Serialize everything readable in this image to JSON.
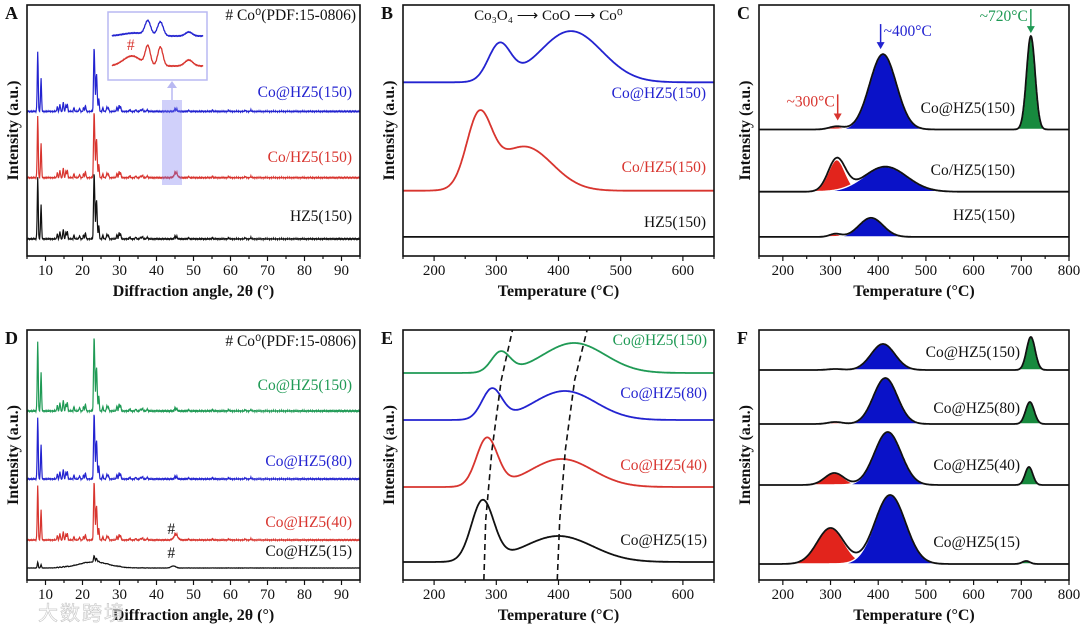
{
  "figure": {
    "watermark": "大数跨境"
  },
  "colors": {
    "blue": "#2323d0",
    "red": "#d8352f",
    "green": "#1f9a55",
    "black": "#111111",
    "fill_blue": "#0a12c8",
    "fill_red": "#e2241c",
    "fill_green": "#178a3e",
    "inset": "#b9b9f2"
  },
  "chart_data": [
    {
      "panel": "A",
      "type": "line",
      "title": "",
      "xlabel": "Diffraction angle, 2θ (°)",
      "ylabel": "Intensity (a.u.)",
      "xlim": [
        5,
        95
      ],
      "ylim": [
        0,
        250
      ],
      "xticks": [
        10,
        20,
        30,
        40,
        50,
        60,
        70,
        80,
        90
      ],
      "legend_note": "# Co⁰(PDF:15-0806)",
      "reference_peaks": [
        [
          7.9,
          1
        ],
        [
          8.8,
          0.55
        ],
        [
          13.2,
          0.08
        ],
        [
          13.9,
          0.12
        ],
        [
          14.8,
          0.16
        ],
        [
          15.5,
          0.1
        ],
        [
          15.9,
          0.12
        ],
        [
          17.7,
          0.06
        ],
        [
          19.2,
          0.05
        ],
        [
          20.3,
          0.06
        ],
        [
          20.8,
          0.1
        ],
        [
          23.1,
          0.9
        ],
        [
          23.3,
          0.45
        ],
        [
          23.7,
          0.45
        ],
        [
          23.9,
          0.38
        ],
        [
          24.4,
          0.22
        ],
        [
          25.5,
          0.06
        ],
        [
          26.6,
          0.08
        ],
        [
          27.0,
          0.06
        ],
        [
          29.3,
          0.07
        ],
        [
          29.9,
          0.1
        ],
        [
          30.3,
          0.08
        ],
        [
          32.8,
          0.03
        ],
        [
          34.4,
          0.03
        ],
        [
          35.7,
          0.03
        ],
        [
          36.2,
          0.04
        ],
        [
          37.5,
          0.03
        ],
        [
          45.0,
          0.05
        ],
        [
          45.5,
          0.04
        ],
        [
          48.7,
          0.02
        ],
        [
          55.1,
          0.02
        ],
        [
          59.5,
          0.02
        ],
        [
          64.0,
          0.02
        ],
        [
          65.5,
          0.02
        ]
      ],
      "series": [
        {
          "name": "Co@HZ5(150)",
          "color": "blue",
          "baseline": 144,
          "scale": 60,
          "humps": []
        },
        {
          "name": "Co/HZ5(150)",
          "color": "red",
          "baseline": 78,
          "scale": 62,
          "humps": [
            [
              45.2,
              3,
              0.5
            ]
          ]
        },
        {
          "name": "HZ5(150)",
          "color": "black",
          "baseline": 17,
          "scale": 62,
          "humps": []
        }
      ],
      "inset": {
        "xlim": [
          38,
          54
        ],
        "ylim": [
          0,
          68
        ],
        "mark": "#",
        "series": [
          {
            "name": "Co@HZ5(150)",
            "color": "blue",
            "baseline": 44,
            "peaks": [
              [
                42,
                3,
                2
              ],
              [
                44.3,
                14,
                0.5
              ],
              [
                46.5,
                14,
                0.5
              ],
              [
                51.5,
                4,
                0.6
              ]
            ]
          },
          {
            "name": "Co/HZ5(150)",
            "color": "red",
            "baseline": 14,
            "peaks": [
              [
                41.5,
                10,
                1.5
              ],
              [
                44.3,
                19,
                0.45
              ],
              [
                46.5,
                19,
                0.45
              ],
              [
                51.5,
                6,
                0.7
              ]
            ]
          }
        ]
      }
    },
    {
      "panel": "B",
      "type": "line",
      "xlabel": "Temperature (°C)",
      "ylabel": "Intensity (a.u.)",
      "xlim": [
        150,
        650
      ],
      "ylim": [
        0,
        250
      ],
      "xticks": [
        200,
        300,
        400,
        500,
        600
      ],
      "annotation": "Co₃O₄ ⟶ CoO ⟶ Co⁰",
      "series": [
        {
          "name": "Co@HZ5(150)",
          "color": "blue",
          "baseline": 173,
          "components": [
            [
              305,
              36,
              18
            ],
            [
              420,
              51,
              50
            ]
          ]
        },
        {
          "name": "Co/HZ5(150)",
          "color": "red",
          "baseline": 65,
          "components": [
            [
              272,
              68,
              20
            ],
            [
              345,
              44,
              45
            ]
          ]
        },
        {
          "name": "HZ5(150)",
          "color": "black",
          "baseline": 19,
          "components": []
        }
      ]
    },
    {
      "panel": "C",
      "type": "area",
      "xlabel": "Temperature (°C)",
      "ylabel": "Intensity (a.u.)",
      "xlim": [
        150,
        800
      ],
      "ylim": [
        0,
        250
      ],
      "xticks": [
        200,
        300,
        400,
        500,
        600,
        700,
        800
      ],
      "arrows": [
        {
          "text": "~300°C",
          "color": "red",
          "x": 315,
          "from": 161,
          "to": 135,
          "side": "left"
        },
        {
          "text": "~400°C",
          "color": "blue",
          "x": 405,
          "from": 231,
          "to": 206,
          "side": "right"
        },
        {
          "text": "~720°C",
          "color": "green",
          "x": 720,
          "from": 246,
          "to": 222,
          "side": "left"
        }
      ],
      "series": [
        {
          "name": "Co@HZ5(150)",
          "baseline": 126,
          "components": [
            [
              312,
              3,
              15,
              "fill_red"
            ],
            [
              410,
              75,
              28,
              "fill_blue"
            ],
            [
              720,
              93,
              9,
              "fill_green"
            ]
          ]
        },
        {
          "name": "Co/HZ5(150)",
          "baseline": 64,
          "components": [
            [
              313,
              32,
              18,
              "fill_red"
            ],
            [
              415,
              25,
              45,
              "fill_blue"
            ]
          ]
        },
        {
          "name": "HZ5(150)",
          "baseline": 19,
          "components": [
            [
              310,
              3,
              12,
              "fill_red"
            ],
            [
              385,
              19,
              25,
              "fill_blue"
            ]
          ]
        }
      ]
    },
    {
      "panel": "D",
      "type": "line",
      "xlabel": "Diffraction angle, 2θ (°)",
      "ylabel": "Intensity (a.u.)",
      "xlim": [
        5,
        95
      ],
      "ylim": [
        0,
        250
      ],
      "xticks": [
        10,
        20,
        30,
        40,
        50,
        60,
        70,
        80,
        90
      ],
      "legend_note": "# Co⁰(PDF:15-0806)",
      "mark": "#",
      "series": [
        {
          "name": "Co@HZ5(150)",
          "color": "green",
          "baseline": 169,
          "scale": 70,
          "humps": []
        },
        {
          "name": "Co@HZ5(80)",
          "color": "blue",
          "baseline": 101,
          "scale": 62,
          "humps": []
        },
        {
          "name": "Co@HZ5(40)",
          "color": "red",
          "baseline": 40,
          "scale": 55,
          "humps": [
            [
              45.2,
              4,
              0.6
            ]
          ]
        },
        {
          "name": "Co@HZ5(15)",
          "color": "black",
          "baseline": 12,
          "scale": 6,
          "humps": [
            [
              23,
              6,
              4
            ],
            [
              44.5,
              2,
              0.6
            ]
          ]
        }
      ]
    },
    {
      "panel": "E",
      "type": "line",
      "xlabel": "Temperature (°C)",
      "ylabel": "Intensity (a.u.)",
      "xlim": [
        150,
        650
      ],
      "ylim": [
        0,
        250
      ],
      "xticks": [
        200,
        300,
        400,
        500,
        600
      ],
      "guides": [
        [
          [
            280,
            0
          ],
          [
            283,
            60
          ],
          [
            293,
            130
          ],
          [
            308,
            200
          ],
          [
            326,
            250
          ]
        ],
        [
          [
            398,
            0
          ],
          [
            402,
            60
          ],
          [
            411,
            130
          ],
          [
            426,
            200
          ],
          [
            446,
            250
          ]
        ]
      ],
      "series": [
        {
          "name": "Co@HZ5(150)",
          "color": "green",
          "baseline": 207,
          "components": [
            [
              307,
              20,
              15
            ],
            [
              425,
              30,
              50
            ]
          ]
        },
        {
          "name": "Co@HZ5(80)",
          "color": "blue",
          "baseline": 160,
          "components": [
            [
              293,
              30,
              16
            ],
            [
              410,
              29,
              50
            ]
          ]
        },
        {
          "name": "Co@HZ5(40)",
          "color": "red",
          "baseline": 93,
          "components": [
            [
              285,
              48,
              17
            ],
            [
              405,
              28,
              50
            ]
          ]
        },
        {
          "name": "Co@HZ5(15)",
          "color": "black",
          "baseline": 18,
          "components": [
            [
              278,
              60,
              18
            ],
            [
              400,
              26,
              55
            ]
          ]
        }
      ]
    },
    {
      "panel": "F",
      "type": "area",
      "xlabel": "Temperature (°C)",
      "ylabel": "Intensity (a.u.)",
      "xlim": [
        150,
        800
      ],
      "ylim": [
        0,
        250
      ],
      "xticks": [
        200,
        300,
        400,
        500,
        600,
        700,
        800
      ],
      "series": [
        {
          "name": "Co@HZ5(150)",
          "baseline": 210,
          "components": [
            [
              310,
              1,
              15,
              "fill_red"
            ],
            [
              410,
              26,
              25,
              "fill_blue"
            ],
            [
              720,
              33,
              9,
              "fill_green"
            ]
          ]
        },
        {
          "name": "Co@HZ5(80)",
          "baseline": 156,
          "components": [
            [
              310,
              2,
              15,
              "fill_red"
            ],
            [
              415,
              46,
              25,
              "fill_blue"
            ],
            [
              718,
              22,
              9,
              "fill_green"
            ]
          ]
        },
        {
          "name": "Co@HZ5(40)",
          "baseline": 95,
          "components": [
            [
              308,
              12,
              20,
              "fill_red"
            ],
            [
              420,
              53,
              28,
              "fill_blue"
            ],
            [
              716,
              18,
              8,
              "fill_green"
            ]
          ]
        },
        {
          "name": "Co@HZ5(15)",
          "baseline": 16,
          "components": [
            [
              300,
              36,
              28,
              "fill_red"
            ],
            [
              425,
              69,
              32,
              "fill_blue"
            ],
            [
              710,
              3,
              8,
              "fill_green"
            ]
          ]
        }
      ]
    }
  ]
}
